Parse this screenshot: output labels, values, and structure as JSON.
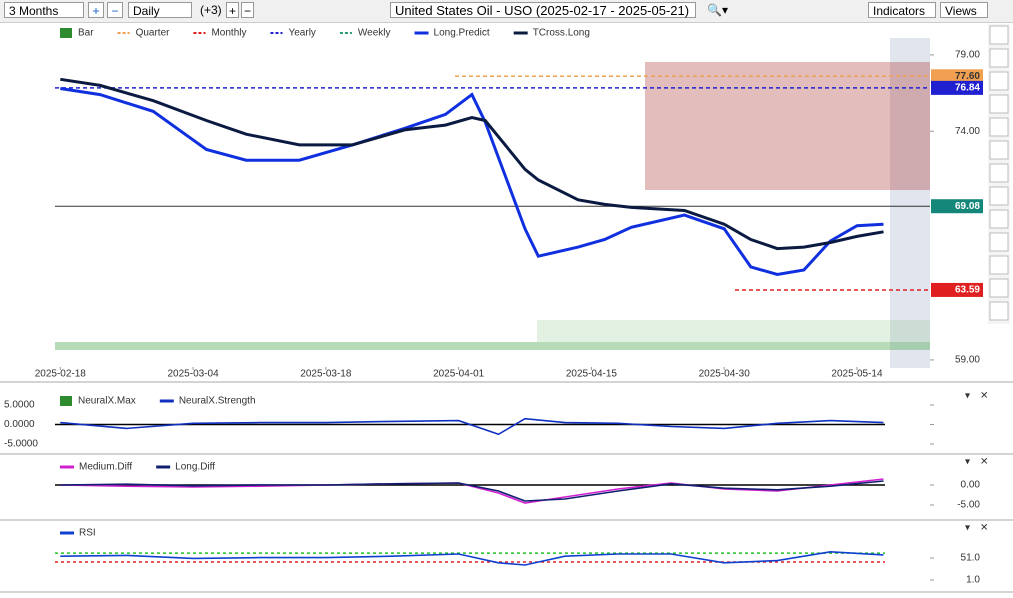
{
  "toolbar": {
    "period": "3 Months",
    "interval": "Daily",
    "extra": "(+3)",
    "title": "United States Oil - USO (2025-02-17 - 2025-05-21)",
    "indicators": "Indicators",
    "views": "Views"
  },
  "chart_data": [
    {
      "type": "line",
      "legend": [
        {
          "name": "Bar",
          "color": "#2e8b2e"
        },
        {
          "name": "Quarter",
          "color": "#f0a050",
          "level": {
            "value": 77.6,
            "label": "77.60"
          }
        },
        {
          "name": "Monthly",
          "color": "#e02020",
          "level": {
            "value": 63.59,
            "label": "63.59"
          }
        },
        {
          "name": "Yearly",
          "color": "#2020d0",
          "level": {
            "value": 76.84,
            "label": "76.84"
          }
        },
        {
          "name": "Weekly",
          "color": "#2a9a7a"
        }
      ],
      "last": {
        "value": 69.08,
        "label": "69.08",
        "color": "#15867a"
      },
      "x": [
        0,
        3,
        7,
        11,
        14,
        18,
        22,
        26,
        29,
        31,
        32,
        35,
        36,
        39,
        41,
        43,
        47,
        50,
        52,
        54,
        56,
        58,
        60,
        62
      ],
      "series": [
        {
          "name": "Long.Predict",
          "color": "#1030e0",
          "values": [
            76.8,
            76.4,
            75.3,
            72.8,
            72.1,
            72.1,
            73.1,
            74.2,
            75.1,
            76.4,
            74.6,
            67.6,
            65.8,
            66.4,
            66.9,
            67.7,
            68.5,
            67.6,
            65.1,
            64.6,
            64.9,
            66.8,
            67.8,
            67.9
          ]
        },
        {
          "name": "TCross.Long",
          "color": "#0a1a40",
          "values": [
            77.4,
            77.0,
            76.0,
            74.7,
            73.8,
            73.1,
            73.1,
            74.1,
            74.4,
            74.9,
            74.7,
            71.5,
            70.8,
            69.5,
            69.2,
            69.0,
            68.8,
            67.9,
            66.9,
            66.3,
            66.4,
            66.7,
            67.1,
            67.4
          ]
        }
      ],
      "xlim": [
        -0.4,
        65.5
      ],
      "xticks": [
        {
          "value": 0,
          "label": "2025-02-18"
        },
        {
          "value": 10,
          "label": "2025-03-04"
        },
        {
          "value": 20,
          "label": "2025-03-18"
        },
        {
          "value": 30,
          "label": "2025-04-01"
        },
        {
          "value": 40,
          "label": "2025-04-15"
        },
        {
          "value": 50,
          "label": "2025-04-30"
        },
        {
          "value": 60,
          "label": "2025-05-14"
        }
      ],
      "ylim": [
        58.34,
        81.16
      ],
      "yticks": [
        {
          "value": 59,
          "label": "59.00"
        },
        {
          "value": 74,
          "label": "74.00"
        },
        {
          "value": 79,
          "label": "79.00"
        }
      ]
    },
    {
      "type": "line",
      "x": [
        0,
        5,
        10,
        15,
        20,
        25,
        30,
        33,
        35,
        38,
        42,
        46,
        50,
        54,
        58,
        62
      ],
      "legend": [
        {
          "name": "NeuralX.Max",
          "color": "#2e8b2e"
        }
      ],
      "series": [
        {
          "name": "NeuralX.Strength",
          "color": "#1030c0",
          "values": [
            0.5,
            -1,
            0.3,
            0.5,
            0.5,
            0.8,
            1,
            -2.5,
            1.5,
            0.5,
            0.3,
            -0.5,
            -1,
            0.3,
            1,
            0.5
          ]
        }
      ],
      "xlim": [
        -0.4,
        65.5
      ],
      "ylim": [
        -7.05,
        8.85
      ],
      "yticks": [
        {
          "value": 5,
          "label": "5.0000"
        },
        {
          "value": 0,
          "label": "0.0000"
        },
        {
          "value": -5,
          "label": "-5.0000"
        }
      ]
    },
    {
      "type": "line",
      "x": [
        0,
        5,
        10,
        15,
        20,
        25,
        30,
        33,
        35,
        38,
        42,
        46,
        50,
        54,
        58,
        62
      ],
      "series": [
        {
          "name": "Medium.Diff",
          "color": "#d020d0",
          "values": [
            0,
            -0.3,
            -0.5,
            -0.3,
            0,
            0.3,
            0.5,
            -2,
            -4.5,
            -3,
            -1,
            0.5,
            -1,
            -1.5,
            0,
            1.5
          ]
        },
        {
          "name": "Long.Diff",
          "color": "#102070",
          "values": [
            0,
            0.2,
            -0.2,
            0,
            0,
            0.3,
            0.5,
            -1.5,
            -4,
            -3.5,
            -1.5,
            0.3,
            -0.8,
            -1.2,
            -0.3,
            1
          ]
        }
      ],
      "xlim": [
        -0.4,
        65.5
      ],
      "ylim": [
        -8.25,
        7.25
      ],
      "yticks": [
        {
          "value": 0,
          "label": "0.00"
        },
        {
          "value": -5,
          "label": "-5.00"
        }
      ]
    },
    {
      "type": "line",
      "x": [
        0,
        5,
        10,
        15,
        20,
        25,
        30,
        33,
        35,
        38,
        42,
        46,
        50,
        54,
        58,
        62
      ],
      "series": [
        {
          "name": "RSI",
          "color": "#1040d0",
          "values": [
            55,
            57,
            50,
            52,
            52,
            55,
            60,
            40,
            35,
            55,
            60,
            60,
            40,
            45,
            65,
            58
          ]
        }
      ],
      "guides": [
        {
          "value": 62,
          "color": "#20c020"
        },
        {
          "value": 42,
          "color": "#e02020"
        }
      ],
      "xlim": [
        -0.4,
        65.5
      ],
      "ylim": [
        -21.7,
        132.8
      ],
      "yticks": [
        {
          "value": 51,
          "label": "51.0"
        },
        {
          "value": 1,
          "label": "1.0"
        }
      ]
    }
  ]
}
